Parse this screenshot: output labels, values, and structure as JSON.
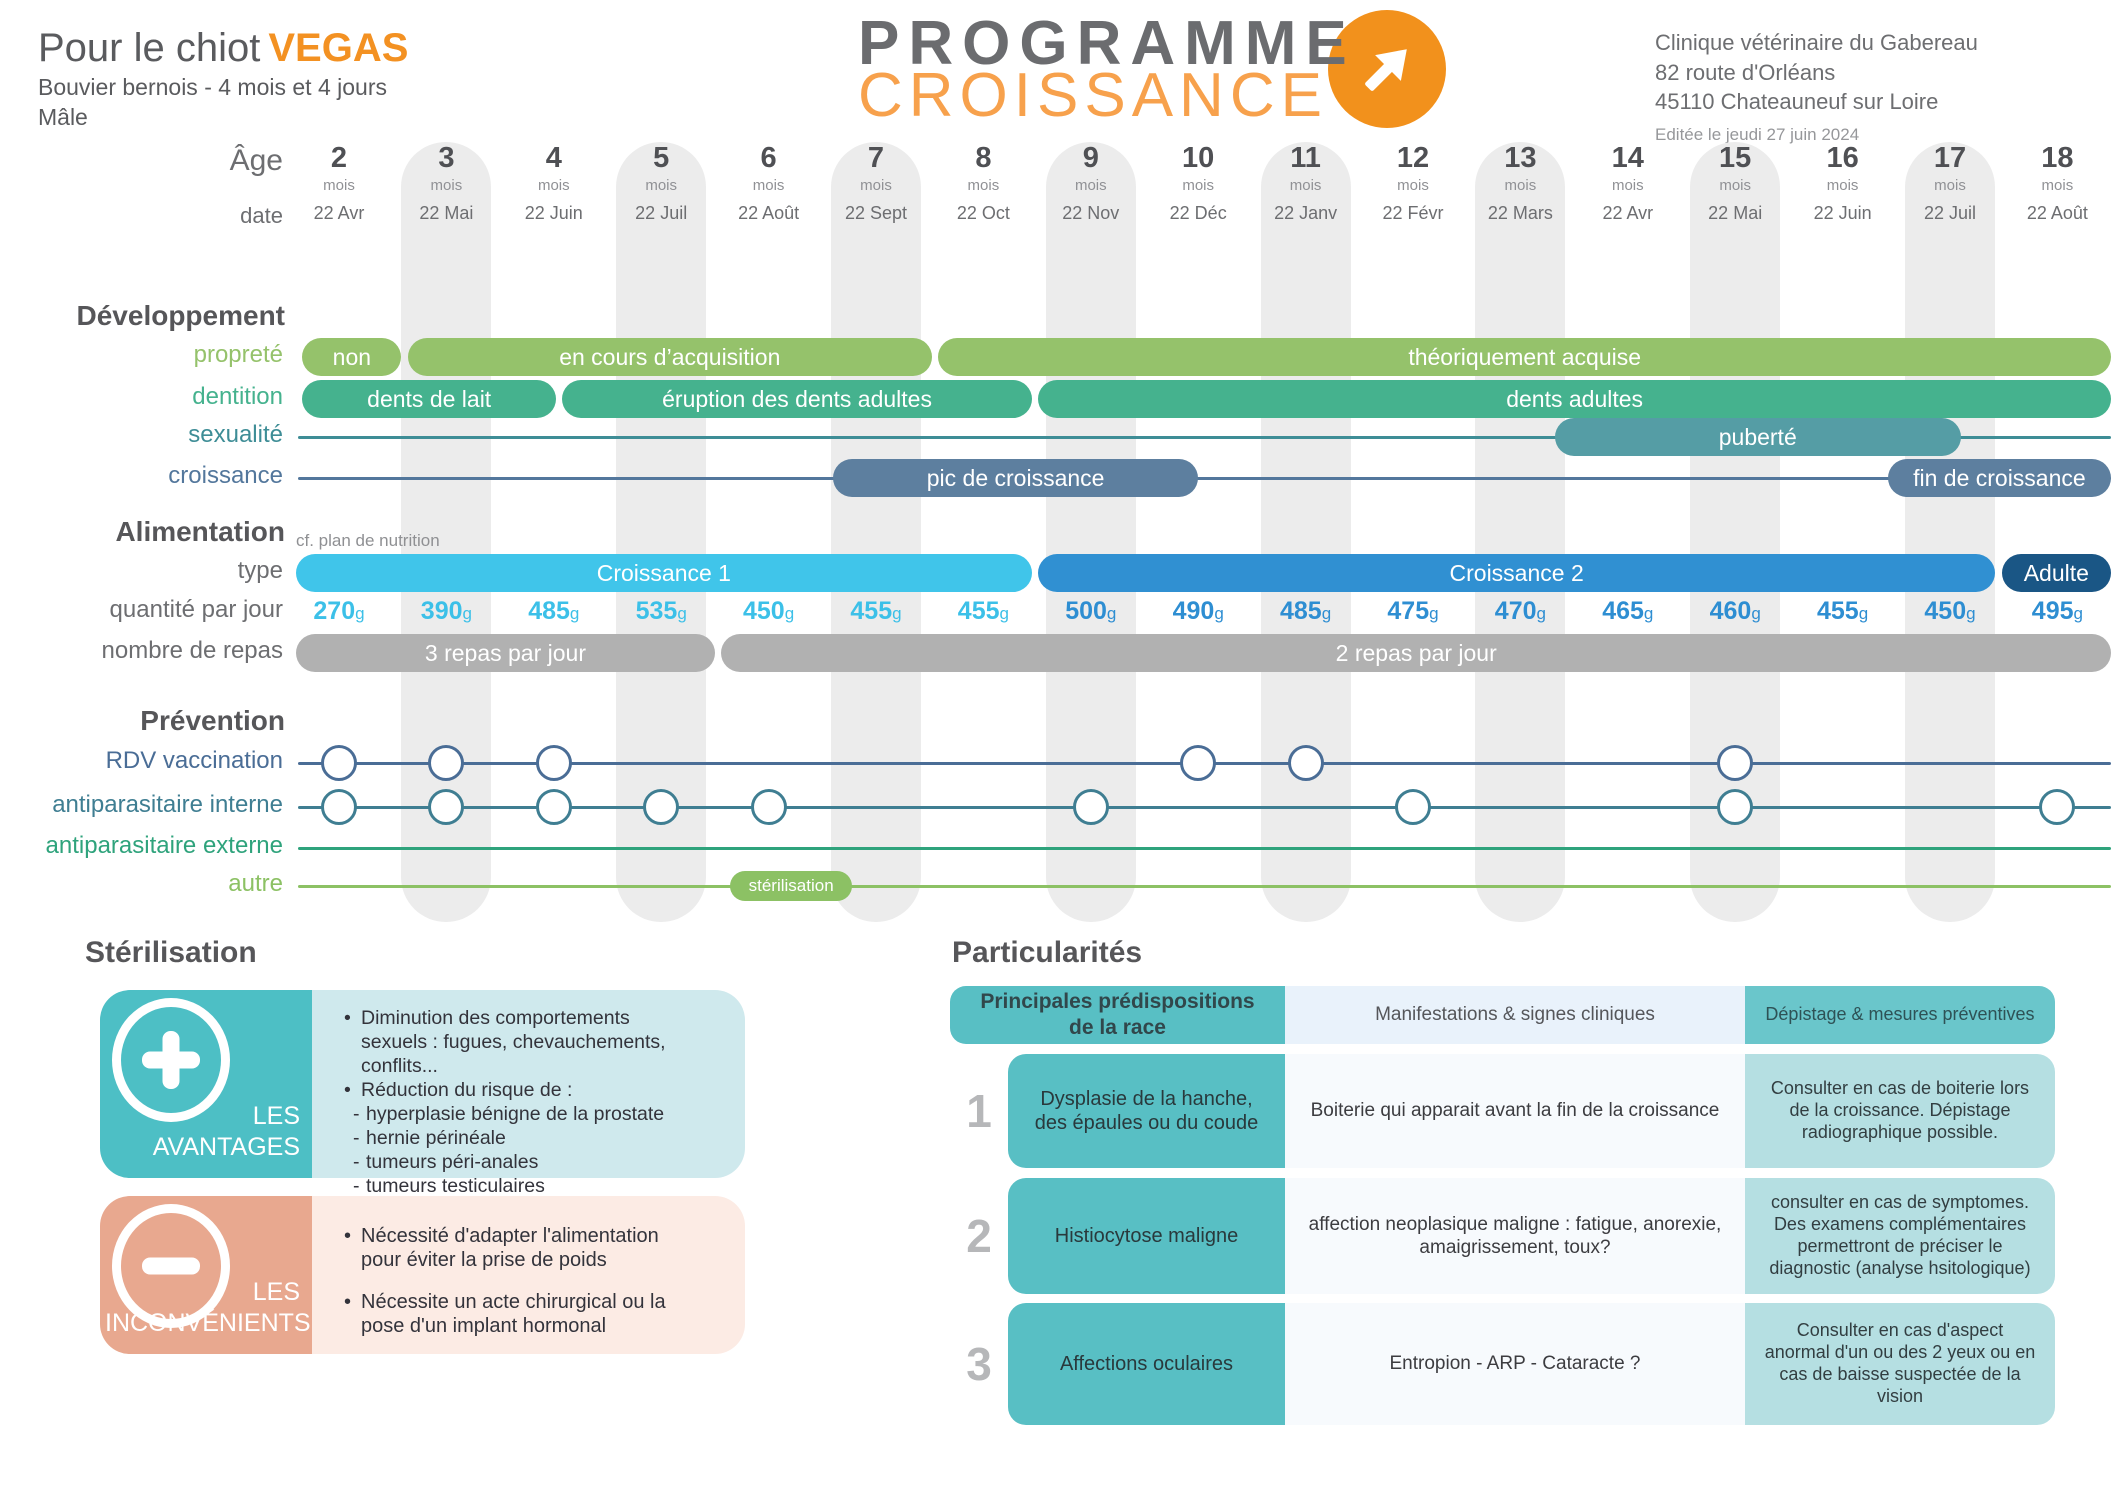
{
  "header": {
    "title_prefix": "Pour le chiot",
    "pet_name": "VEGAS",
    "breed_age": "Bouvier bernois - 4 mois et 4 jours",
    "sex": "Mâle",
    "logo_line1": "PROGRAMME",
    "logo_line2": "CROISSANCE",
    "clinic_name": "Clinique vétérinaire du Gabereau",
    "clinic_address1": "82 route d'Orléans",
    "clinic_address2": "45110 Chateauneuf sur Loire",
    "edited": "Editée le jeudi 27 juin 2024",
    "accent_orange": "#f39122"
  },
  "timeline": {
    "age_label": "Âge",
    "age_unit": "mois",
    "date_label": "date",
    "months": [
      2,
      3,
      4,
      5,
      6,
      7,
      8,
      9,
      10,
      11,
      12,
      13,
      14,
      15,
      16,
      17,
      18
    ],
    "dates": [
      "22 Avr",
      "22 Mai",
      "22 Juin",
      "22 Juil",
      "22 Août",
      "22 Sept",
      "22 Oct",
      "22 Nov",
      "22 Déc",
      "22 Janv",
      "22 Févr",
      "22 Mars",
      "22 Avr",
      "22 Mai",
      "22 Juin",
      "22 Juil",
      "22 Août"
    ],
    "development": {
      "heading": "Développement",
      "rows": [
        {
          "id": "proprete",
          "label": "propreté",
          "color": "#95c26b",
          "bars": [
            {
              "label": "non",
              "from": 1.66,
              "to": 2.58
            },
            {
              "label": "en cours d’acquisition",
              "from": 2.64,
              "to": 7.52
            },
            {
              "label": "théoriquement acquise",
              "from": 7.58,
              "to": 18.5
            }
          ]
        },
        {
          "id": "dentition",
          "label": "dentition",
          "color": "#45b28e",
          "bars": [
            {
              "label": "dents de lait",
              "from": 1.66,
              "to": 4.02
            },
            {
              "label": "éruption des dents adultes",
              "from": 4.08,
              "to": 8.45
            },
            {
              "label": "dents adultes",
              "from": 8.51,
              "to": 18.5
            }
          ]
        },
        {
          "id": "sexualite",
          "label": "sexualité",
          "color": "#3e8d96",
          "line": true,
          "bars": [
            {
              "label": "puberté",
              "from": 13.32,
              "to": 17.1,
              "color": "#559da5"
            }
          ]
        },
        {
          "id": "croissance",
          "label": "croissance",
          "color": "#53779c",
          "line": true,
          "bars": [
            {
              "label": "pic de croissance",
              "from": 6.6,
              "to": 10.0,
              "color": "#5d7f9f"
            },
            {
              "label": "fin de croissance",
              "from": 16.42,
              "to": 18.5,
              "color": "#5d7f9f"
            }
          ]
        }
      ]
    },
    "alimentation": {
      "heading": "Alimentation",
      "note": "cf. plan de nutrition",
      "type_row": {
        "id": "type",
        "label": "type",
        "label_color": "#6d6e71",
        "bars": [
          {
            "label": "Croissance 1",
            "from": 1.6,
            "to": 8.45,
            "color": "#40c5ea"
          },
          {
            "label": "Croissance 2",
            "from": 8.51,
            "to": 17.42,
            "color": "#3090d2"
          },
          {
            "label": "Adulte",
            "from": 17.48,
            "to": 18.5,
            "color": "#1a5685"
          }
        ]
      },
      "quantity_row": {
        "id": "quantity",
        "label": "quantité par jour",
        "label_color": "#6d6e71",
        "unit": "g",
        "values": [
          270,
          390,
          485,
          535,
          450,
          455,
          455,
          500,
          490,
          485,
          475,
          470,
          465,
          460,
          455,
          450,
          495
        ],
        "color_growth1": "#3cc0e8",
        "color_growth2": "#2e8ed2",
        "split_index": 7
      },
      "meals_row": {
        "id": "meals",
        "label": "nombre de repas",
        "label_color": "#6d6e71",
        "color": "#b1b1b1",
        "bars": [
          {
            "label": "3 repas par jour",
            "from": 1.6,
            "to": 5.5
          },
          {
            "label": "2 repas par jour",
            "from": 5.56,
            "to": 18.5
          }
        ]
      }
    },
    "prevention": {
      "heading": "Prévention",
      "rows": [
        {
          "id": "vaccination",
          "label": "RDV vaccination",
          "color": "#4a6d96",
          "line": true,
          "circle_months": [
            2,
            3,
            4,
            10,
            11,
            15
          ]
        },
        {
          "id": "antiparasitaire-interne",
          "label": "antiparasitaire interne",
          "color": "#3f7e92",
          "line": true,
          "circle_months": [
            2,
            3,
            4,
            5,
            6,
            9,
            12,
            15,
            18
          ]
        },
        {
          "id": "antiparasitaire-externe",
          "label": "antiparasitaire externe",
          "color": "#2fa37c",
          "line": true,
          "circle_months": []
        },
        {
          "id": "autre",
          "label": "autre",
          "color": "#8cc164",
          "line": true,
          "circle_months": [],
          "bars": [
            {
              "label": "stérilisation",
              "from": 5.64,
              "to": 6.78,
              "small": true
            }
          ]
        }
      ]
    }
  },
  "sterilisation": {
    "heading": "Stérilisation",
    "advantages": {
      "title": "LES AVANTAGES",
      "color": "#4dbfc5",
      "items": [
        {
          "marker": "•",
          "text": "Diminution des comportements sexuels : fugues, chevauchements, conflits..."
        },
        {
          "marker": "•",
          "text": "Réduction du risque de :"
        },
        {
          "marker": "-",
          "text": "hyperplasie bénigne de la prostate"
        },
        {
          "marker": "-",
          "text": "hernie périnéale"
        },
        {
          "marker": "-",
          "text": "tumeurs péri-anales"
        },
        {
          "marker": "-",
          "text": "tumeurs testiculaires"
        }
      ]
    },
    "drawbacks": {
      "title": "LES INCONVÉNIENTS",
      "color": "#e8a88f",
      "items": [
        {
          "marker": "•",
          "text": "Nécessité d'adapter l'alimentation pour éviter la prise de poids"
        },
        {
          "marker": "•",
          "text": "Nécessite un acte chirurgical ou la pose d'un implant hormonal"
        }
      ]
    }
  },
  "particularites": {
    "heading": "Particularités",
    "col1_header": "Principales prédispositions de la race",
    "col2_header": "Manifestations & signes cliniques",
    "col3_header": "Dépistage & mesures préventives",
    "rows": [
      {
        "num": "1",
        "predisposition": "Dysplasie de la hanche, des épaules ou du coude",
        "signs": "Boiterie qui apparait avant la fin de la croissance",
        "screening": "Consulter en cas de boiterie lors de la croissance. Dépistage radiographique possible."
      },
      {
        "num": "2",
        "predisposition": "Histiocytose maligne",
        "signs": "affection neoplasique maligne : fatigue, anorexie, amaigrissement, toux?",
        "screening": "consulter en cas de symptomes. Des examens complémentaires permettront de préciser le diagnostic (analyse hsitologique)"
      },
      {
        "num": "3",
        "predisposition": "Affections oculaires",
        "signs": "Entropion - ARP - Cataracte ?",
        "screening": "Consulter en cas d'aspect anormal d'un ou des 2 yeux ou en cas de baisse suspectée de la vision"
      }
    ]
  }
}
